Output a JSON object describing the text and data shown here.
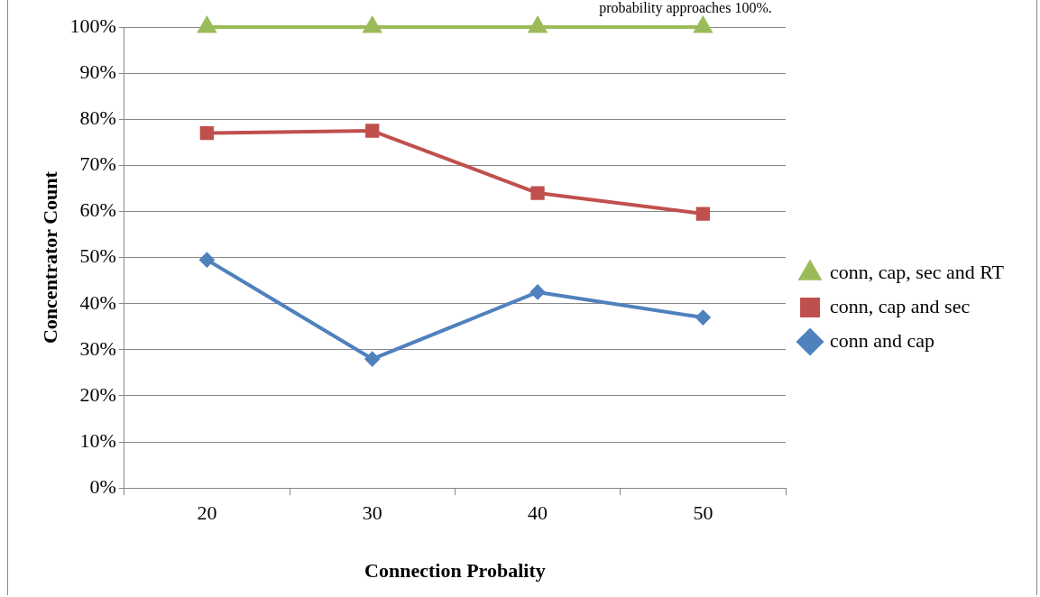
{
  "chart_data": {
    "type": "line",
    "xlabel": "Connection Probality",
    "ylabel": "Concentrator Count",
    "annotations": [
      "probability approaches 100%."
    ],
    "categories": [
      "20",
      "30",
      "40",
      "50"
    ],
    "series": [
      {
        "name": "conn, cap, sec and RT",
        "color": "#9bbb59",
        "marker": "triangle",
        "values": [
          100,
          100,
          100,
          100
        ]
      },
      {
        "name": "conn, cap and sec",
        "color": "#c0504d",
        "marker": "square",
        "values": [
          77,
          77.5,
          64,
          59.5
        ]
      },
      {
        "name": "conn and cap",
        "color": "#4f81bd",
        "marker": "diamond",
        "values": [
          49.5,
          28,
          42.5,
          37
        ]
      }
    ],
    "ylim": [
      0,
      100
    ],
    "yticks": [
      {
        "value": 0,
        "label": "0%"
      },
      {
        "value": 10,
        "label": "10%"
      },
      {
        "value": 20,
        "label": "20%"
      },
      {
        "value": 30,
        "label": "30%"
      },
      {
        "value": 40,
        "label": "40%"
      },
      {
        "value": 50,
        "label": "50%"
      },
      {
        "value": 60,
        "label": "60%"
      },
      {
        "value": 70,
        "label": "70%"
      },
      {
        "value": 80,
        "label": "80%"
      },
      {
        "value": 90,
        "label": "90%"
      },
      {
        "value": 100,
        "label": "100%"
      }
    ],
    "grid": "y",
    "legend": "right"
  }
}
